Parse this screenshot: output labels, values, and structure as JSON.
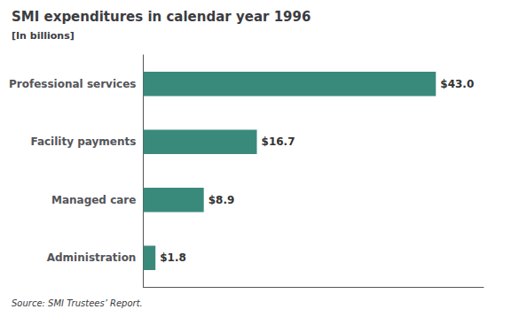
{
  "chart_data": {
    "type": "bar",
    "orientation": "horizontal",
    "title": "SMI expenditures in calendar year 1996",
    "subtitle": "[In billions]",
    "source": "Source: SMI Trustees’ Report.",
    "categories": [
      "Professional services",
      "Facility payments",
      "Managed care",
      "Administration"
    ],
    "values": [
      43.0,
      16.7,
      8.9,
      1.8
    ],
    "value_labels": [
      "$43.0",
      "$16.7",
      "$8.9",
      "$1.8"
    ],
    "data_labels": true,
    "color": "#3a8a7c",
    "xlim": [
      0,
      50
    ],
    "tick_labels": "y",
    "grid": false
  }
}
